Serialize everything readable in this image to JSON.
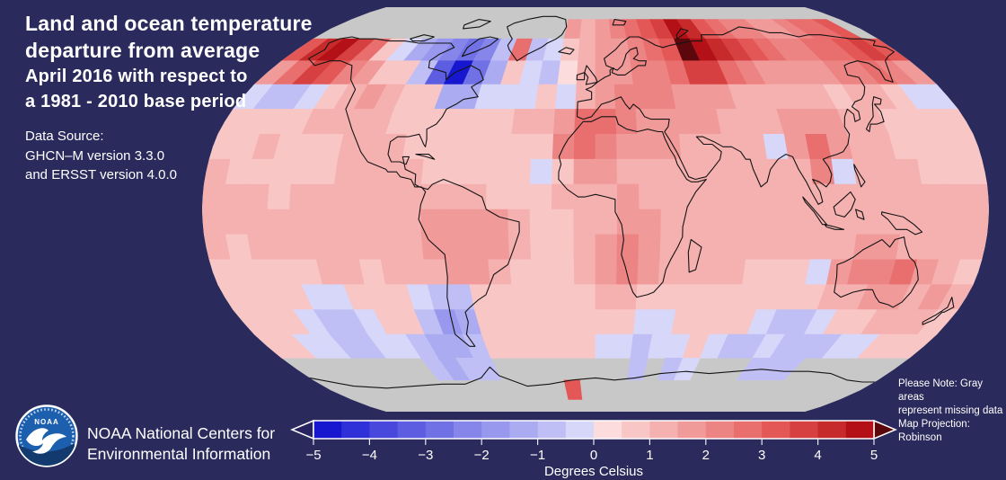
{
  "background_color": "#2b2a5c",
  "title": {
    "line1": "Land and ocean temperature",
    "line2": "departure from average",
    "line3": "April 2016 with respect to",
    "line4": "a 1981 - 2010 base period"
  },
  "source": {
    "line1": "Data Source:",
    "line2": "GHCN–M version 3.3.0",
    "line3": "and ERSST version 4.0.0"
  },
  "note": {
    "line1": "Please Note: Gray areas",
    "line2": "represent missing data",
    "line3": "Map Projection: Robinson"
  },
  "footer": {
    "logo_text": "NOAA",
    "org_line1": "NOAA National Centers for",
    "org_line2": "Environmental Information"
  },
  "colorbar": {
    "label": "Degrees Celsius",
    "ticks": [
      "−5",
      "−4",
      "−3",
      "−2",
      "−1",
      "0",
      "1",
      "2",
      "3",
      "4",
      "5"
    ],
    "value_min": -5,
    "value_max": 5,
    "step": 0.5,
    "segment_colors": [
      "#1717cf",
      "#3030d8",
      "#4848dc",
      "#5d5de1",
      "#7171e6",
      "#8585ea",
      "#9898ee",
      "#ababf2",
      "#bfbff6",
      "#d7d7fa",
      "#fcdcdc",
      "#f9c6c6",
      "#f5b0b0",
      "#f19a9a",
      "#ed8484",
      "#e96e6e",
      "#e35757",
      "#d64040",
      "#c72a2a",
      "#b31117"
    ],
    "under_arrow_color": "#272360",
    "over_arrow_color": "#5c070b",
    "missing_color": "#c8c8c8"
  },
  "chart_data": {
    "type": "heatmap",
    "title": "Land and ocean temperature departure from average, April 2016 (vs 1981-2010 base period)",
    "units": "Degrees Celsius",
    "projection": "Robinson",
    "legend_position": "bottom",
    "value_range": [
      -5,
      5
    ],
    "missing_value": null,
    "lat_start": 90,
    "lat_step": -10,
    "lon_start": -180,
    "lon_step": 10,
    "grid": [
      [
        null,
        null,
        null,
        null,
        null,
        null,
        null,
        null,
        null,
        null,
        null,
        null,
        null,
        null,
        null,
        null,
        null,
        null,
        null,
        null,
        null,
        null,
        null,
        null,
        null,
        null,
        null,
        null,
        null,
        null,
        null,
        null,
        null,
        null,
        null,
        null
      ],
      [
        null,
        null,
        null,
        null,
        null,
        null,
        null,
        null,
        null,
        null,
        null,
        null,
        null,
        null,
        null,
        null,
        1.5,
        1,
        1.5,
        2,
        2.5,
        3,
        3.5,
        4.5,
        4,
        3,
        2.5,
        2,
        2,
        1.5,
        1.5,
        2,
        2.5,
        2.5,
        3,
        null
      ],
      [
        3,
        4,
        4.5,
        3.5,
        2.5,
        0.5,
        -0.5,
        -1.5,
        -2,
        -2.5,
        -3,
        -2.5,
        -1,
        2.5,
        -1,
        -0.5,
        0.5,
        1,
        1.5,
        1.5,
        2,
        2.5,
        3,
        5.5,
        5,
        4,
        3.5,
        3,
        2.5,
        2,
        2,
        2.5,
        2.5,
        3,
        3.5,
        3
      ],
      [
        1.5,
        2.5,
        3.5,
        3,
        2,
        1.5,
        0.5,
        0.5,
        -1,
        -3.5,
        -4.8,
        -3,
        -1.5,
        0.5,
        -0.5,
        -0.7,
        0.3,
        1,
        1.5,
        1.5,
        2,
        2,
        2.5,
        3.5,
        3.5,
        2.5,
        2,
        1.5,
        1.5,
        1.5,
        1.5,
        2,
        2,
        2.5,
        2,
        1.5
      ],
      [
        -0.5,
        -1,
        -0.8,
        -0.5,
        0.5,
        1,
        1.5,
        1,
        0.5,
        0.5,
        -1.5,
        -1.5,
        -0.5,
        -0.5,
        -0.5,
        0.8,
        -0.3,
        1.2,
        1.8,
        2,
        2,
        2,
        1.8,
        1.5,
        1.5,
        1.2,
        1,
        1.2,
        1.2,
        1,
        0.8,
        1.2,
        1,
        0.8,
        -0.5,
        -0.5
      ],
      [
        0.5,
        0.8,
        0.8,
        0.8,
        1,
        1,
        1.2,
        1,
        0.8,
        0.8,
        0.5,
        0.5,
        0.8,
        0.8,
        1,
        1,
        1.5,
        2.5,
        2.8,
        2.2,
        1.8,
        1.8,
        1.5,
        1.5,
        1.2,
        1,
        1.2,
        1.5,
        1.8,
        1.5,
        1.2,
        1,
        0.8,
        0.8,
        0.6,
        0.5
      ],
      [
        0.8,
        0.8,
        1,
        0.8,
        0.8,
        0.8,
        1,
        1.2,
        1,
        0.8,
        0.8,
        0.8,
        0.8,
        0.8,
        0.8,
        0.8,
        2,
        2.5,
        2.2,
        1.8,
        1.5,
        1.5,
        1.2,
        1.2,
        1,
        1,
        -0.5,
        1.5,
        2.5,
        1.5,
        1.2,
        1,
        0.8,
        0.8,
        0.8,
        0.8
      ],
      [
        1,
        0.8,
        0.8,
        0.8,
        0.8,
        0.8,
        1,
        1.2,
        1,
        1,
        0.8,
        0.8,
        0.8,
        0.8,
        0.8,
        -0.5,
        0.5,
        1.8,
        1.5,
        1.2,
        1.2,
        1.2,
        1,
        1,
        1,
        1,
        1,
        1.2,
        2.2,
        -0.5,
        1.2,
        1,
        1,
        0.8,
        0.8,
        0.8
      ],
      [
        1,
        1,
        1,
        0.8,
        1,
        1,
        1.2,
        1.2,
        1.2,
        1,
        1.2,
        1.2,
        1,
        0.8,
        0.8,
        0.8,
        1,
        1.2,
        1.2,
        1.5,
        1.2,
        1.2,
        1,
        1,
        1,
        1,
        1,
        1,
        1.2,
        1,
        1,
        1,
        1,
        1,
        1,
        1
      ],
      [
        1,
        1,
        1,
        1,
        1,
        1.2,
        1.2,
        1.2,
        1.2,
        1.2,
        1.5,
        1.5,
        1.5,
        1.5,
        1,
        0.8,
        0.8,
        1,
        1.2,
        1.5,
        1.5,
        1.2,
        1,
        1,
        1,
        1,
        1,
        1,
        1,
        1,
        1,
        1.2,
        1,
        1,
        1,
        1
      ],
      [
        1,
        0.8,
        1,
        1,
        1,
        1,
        1,
        1.2,
        1.2,
        1.2,
        1.5,
        1.8,
        1.8,
        1.5,
        1,
        0.8,
        0.8,
        1,
        1.8,
        2,
        1.5,
        1.2,
        1.2,
        1,
        1,
        1,
        1,
        1,
        1,
        1.2,
        1.5,
        1.5,
        1.2,
        1.2,
        1,
        1
      ],
      [
        0.8,
        0.8,
        0.8,
        0.8,
        0.8,
        1,
        1,
        0.8,
        1,
        1.2,
        1.2,
        1.5,
        1.5,
        1.2,
        0.8,
        0.8,
        0.8,
        1,
        1.5,
        2,
        1.5,
        1.2,
        1,
        1,
        1,
        0.8,
        0.8,
        0.8,
        -0.5,
        1.5,
        2,
        2,
        2.8,
        1.8,
        1,
        0.8
      ],
      [
        0.8,
        0.8,
        0.5,
        0.5,
        -0.5,
        -0.5,
        0.5,
        0.8,
        0.5,
        -0.5,
        -1,
        -1,
        0.5,
        0.8,
        0.8,
        0.8,
        0.8,
        0.8,
        1.2,
        1.2,
        0.8,
        0.8,
        0.8,
        0.8,
        0.8,
        0.8,
        0.8,
        0.8,
        0.8,
        1.2,
        1,
        1.5,
        1.5,
        1.2,
        1.5,
        1
      ],
      [
        0.8,
        0.5,
        0.5,
        -0.5,
        -0.8,
        -0.8,
        -0.5,
        0.5,
        0.5,
        -0.8,
        -2,
        -1.5,
        0.5,
        0.8,
        0.8,
        0.5,
        0.5,
        0.5,
        0.8,
        0.5,
        -0.5,
        -0.5,
        0.5,
        0.5,
        0.8,
        0.5,
        -0.5,
        -0.8,
        -0.8,
        -0.5,
        0.5,
        0.8,
        1,
        1.2,
        1.2,
        0.8
      ],
      [
        0.5,
        0.5,
        -0.5,
        -0.5,
        -0.8,
        -0.8,
        -0.5,
        -0.5,
        -0.8,
        -1.2,
        -1.5,
        -0.8,
        0.5,
        0.5,
        0.5,
        0.5,
        0.5,
        0.5,
        -0.5,
        -0.5,
        -0.8,
        -0.5,
        -0.5,
        0.5,
        -0.5,
        -0.8,
        -0.8,
        -0.5,
        -0.8,
        -1,
        -0.8,
        -0.5,
        -0.5,
        0.5,
        0.5,
        0.5
      ],
      [
        null,
        null,
        null,
        null,
        null,
        null,
        null,
        null,
        -1,
        -1.2,
        -1,
        -0.8,
        null,
        null,
        null,
        null,
        null,
        null,
        null,
        null,
        -0.8,
        null,
        -0.8,
        -0.5,
        null,
        null,
        null,
        -0.8,
        -1,
        -0.8,
        null,
        null,
        null,
        null,
        null,
        null
      ],
      [
        null,
        null,
        null,
        null,
        null,
        null,
        null,
        null,
        null,
        null,
        null,
        null,
        null,
        null,
        null,
        null,
        3,
        null,
        null,
        null,
        null,
        null,
        null,
        null,
        null,
        null,
        null,
        null,
        null,
        null,
        null,
        null,
        null,
        null,
        null,
        null
      ],
      [
        null,
        null,
        null,
        null,
        null,
        null,
        null,
        null,
        null,
        null,
        null,
        null,
        null,
        null,
        null,
        null,
        null,
        null,
        null,
        null,
        null,
        null,
        null,
        null,
        null,
        null,
        null,
        null,
        null,
        null,
        null,
        null,
        null,
        null,
        null,
        null
      ]
    ]
  }
}
